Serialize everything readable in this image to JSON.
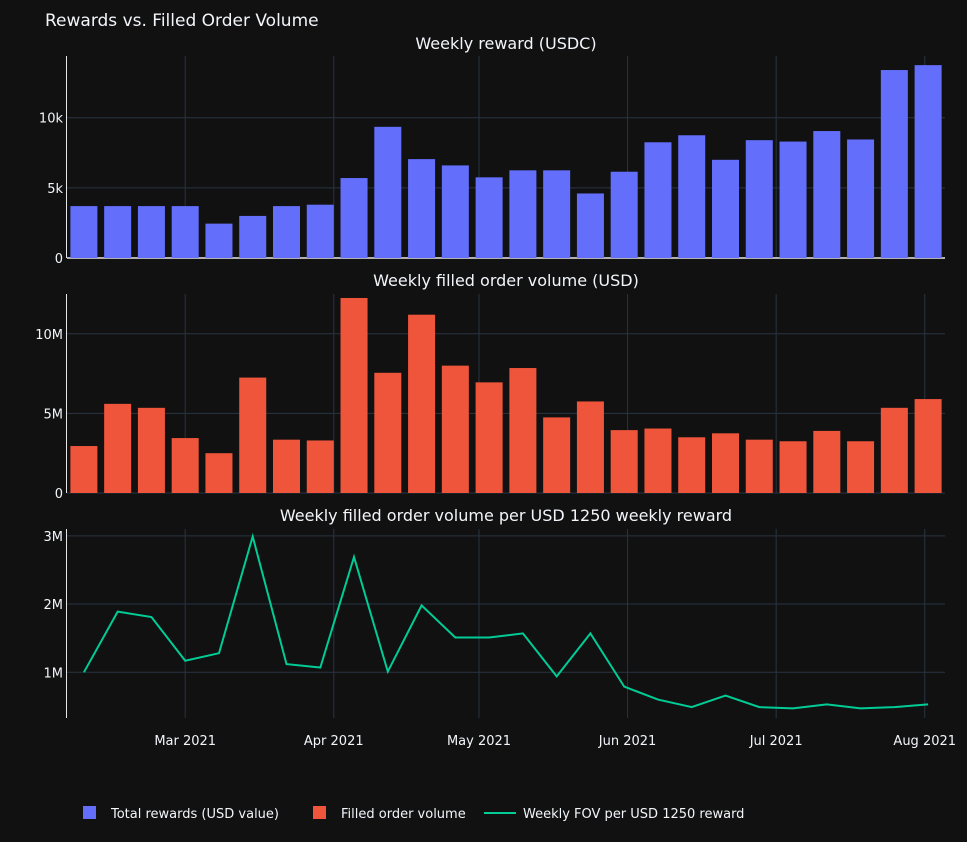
{
  "title": "Rewards vs. Filled Order Volume",
  "colors": {
    "background": "#111111",
    "grid": "#283442",
    "text": "#f2f5fa",
    "rewards": "#636efa",
    "volume": "#ef553b",
    "fov": "#00cc96"
  },
  "chart_data": [
    {
      "type": "bar",
      "title": "Weekly reward (USDC)",
      "series": [
        {
          "name": "Total rewards (USD value)",
          "values": [
            3700,
            3700,
            3700,
            3700,
            2450,
            3000,
            3700,
            3800,
            5700,
            9350,
            7050,
            6600,
            5750,
            6250,
            6250,
            4600,
            6150,
            8250,
            8750,
            7000,
            8400,
            8300,
            9050,
            8450,
            13400,
            13750
          ]
        }
      ],
      "ylim": [
        0,
        14400
      ],
      "yticks": [
        {
          "value": 0,
          "label": "0"
        },
        {
          "value": 5000,
          "label": "5k"
        },
        {
          "value": 10000,
          "label": "10k"
        }
      ]
    },
    {
      "type": "bar",
      "title": "Weekly filled order volume (USD)",
      "series": [
        {
          "name": "Filled order volume",
          "values": [
            2950000,
            5600000,
            5350000,
            3450000,
            2500000,
            7250000,
            3350000,
            3300000,
            12250000,
            7550000,
            11200000,
            8000000,
            6950000,
            7850000,
            4750000,
            5750000,
            3950000,
            4050000,
            3500000,
            3750000,
            3350000,
            3250000,
            3900000,
            3250000,
            5350000,
            5900000
          ]
        }
      ],
      "ylim": [
        0,
        12500000
      ],
      "yticks": [
        {
          "value": 0,
          "label": "0"
        },
        {
          "value": 5000000,
          "label": "5M"
        },
        {
          "value": 10000000,
          "label": "10M"
        }
      ]
    },
    {
      "type": "line",
      "title": "Weekly filled order volume per USD 1250 weekly reward",
      "series": [
        {
          "name": "Weekly FOV per USD 1250 reward",
          "values": [
            1000000,
            1890000,
            1810000,
            1170000,
            1280000,
            2990000,
            1120000,
            1070000,
            2690000,
            1010000,
            1980000,
            1510000,
            1510000,
            1570000,
            940000,
            1570000,
            790000,
            600000,
            490000,
            660000,
            490000,
            470000,
            530000,
            470000,
            490000,
            530000
          ]
        }
      ],
      "ylim": [
        330000,
        3100000
      ],
      "yticks": [
        {
          "value": 1000000,
          "label": "1M"
        },
        {
          "value": 2000000,
          "label": "2M"
        },
        {
          "value": 3000000,
          "label": "3M"
        }
      ],
      "xticks": [
        "Mar 2021",
        "Apr 2021",
        "May 2021",
        "Jun 2021",
        "Jul 2021",
        "Aug 2021"
      ]
    }
  ],
  "legend": [
    {
      "label": "Total rewards (USD value)",
      "kind": "square",
      "color": "#636efa"
    },
    {
      "label": "Filled order volume",
      "kind": "square",
      "color": "#ef553b"
    },
    {
      "label": "Weekly FOV per USD 1250 reward",
      "kind": "line",
      "color": "#00cc96"
    }
  ]
}
